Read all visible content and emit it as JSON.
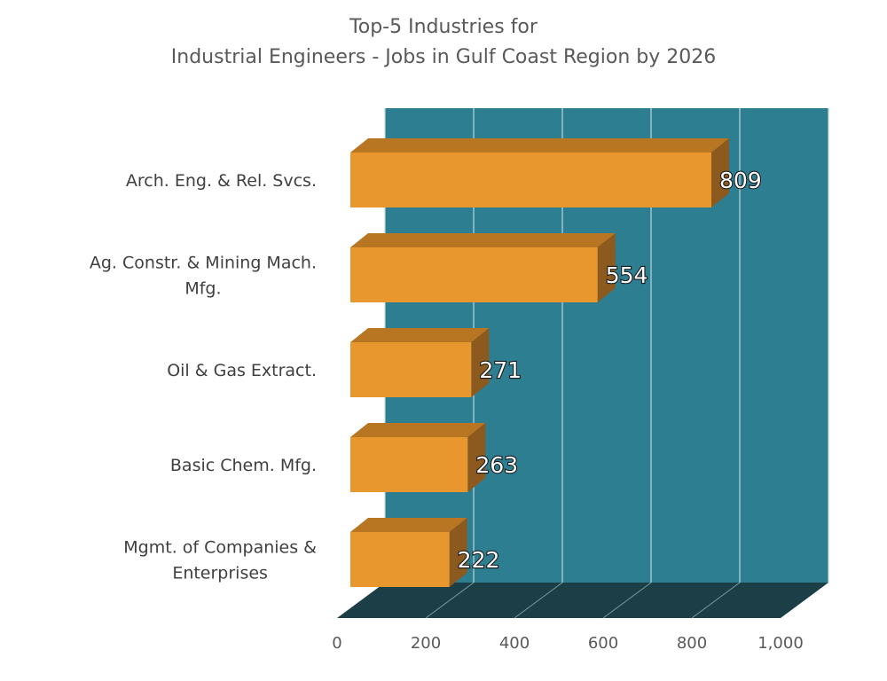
{
  "chart_data": {
    "type": "bar",
    "orientation": "horizontal",
    "style": "3d",
    "title_lines": [
      "Top-5 Industries for",
      "Industrial Engineers - Jobs in Gulf Coast Region by 2026"
    ],
    "categories": [
      "Arch. Eng. & Rel. Svcs.",
      "Ag. Constr. & Mining Mach. Mfg.",
      "Oil & Gas Extract.",
      "Basic Chem. Mfg.",
      "Mgmt. of Companies & Enterprises"
    ],
    "category_label_lines": [
      [
        "Arch. Eng. & Rel. Svcs."
      ],
      [
        "Ag. Constr. & Mining Mach.",
        "Mfg."
      ],
      [
        "Oil & Gas Extract."
      ],
      [
        "Basic Chem. Mfg."
      ],
      [
        "Mgmt. of Companies &",
        "Enterprises"
      ]
    ],
    "values": [
      809,
      554,
      271,
      263,
      222
    ],
    "data_labels": [
      "809",
      "554",
      "271",
      "263",
      "222"
    ],
    "xlim": [
      0,
      1000
    ],
    "x_ticks": [
      0,
      200,
      400,
      600,
      800,
      1000
    ],
    "x_tick_labels": [
      "0",
      "200",
      "400",
      "600",
      "800",
      "1,000"
    ],
    "grid": true,
    "legend": "none",
    "colors": {
      "bar_front": "#E8962E",
      "bar_top": "#B87522",
      "bar_side": "#8C5A1E",
      "back_wall": "#2E7E92",
      "floor": "#1C3E47",
      "gridline": "#BFD5DB"
    }
  }
}
